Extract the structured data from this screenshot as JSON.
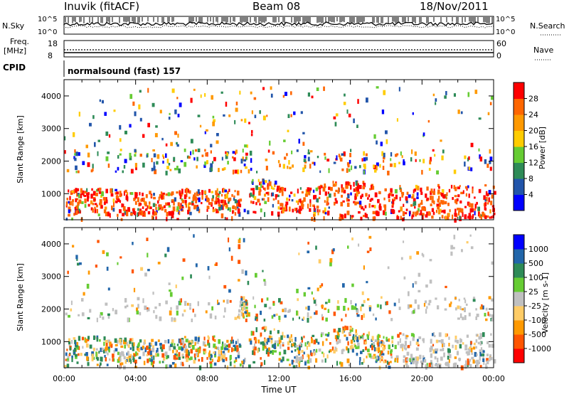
{
  "header": {
    "station": "Inuvik (fitACF)",
    "beam": "Beam 08",
    "date": "18/Nov/2011"
  },
  "panels": {
    "nsky_label": "N.Sky",
    "nsky_ticks": [
      "10^5",
      "10^0"
    ],
    "nsearch_label": "N.Search",
    "nsearch_ticks": [
      "10^5",
      "10^0"
    ],
    "freq_label_1": "Freq.",
    "freq_label_2": "[MHz]",
    "freq_ticks": [
      "18",
      "8"
    ],
    "nave_label": "Nave",
    "nave_ticks": [
      "60",
      "0"
    ],
    "cpid_label": "CPID",
    "cpid_text": "normalsound (fast) 157"
  },
  "colors": {
    "power_scale": [
      "#0000ff",
      "#2255aa",
      "#2e8b57",
      "#66cc33",
      "#ffcc00",
      "#ff9900",
      "#ff6600",
      "#ff0000"
    ],
    "velocity_scale": [
      "#ff0000",
      "#ff5500",
      "#ff9900",
      "#ffcc66",
      "#c0c0c0",
      "#66cc33",
      "#2e8b57",
      "#2266aa",
      "#0000ff"
    ]
  },
  "chart_data": [
    {
      "type": "heatmap",
      "name": "power",
      "xlabel": "Time UT",
      "ylabel": "Slant Range [km]",
      "x_ticks": [
        "00:00",
        "04:00",
        "08:00",
        "12:00",
        "16:00",
        "20:00",
        "00:00"
      ],
      "y_ticks": [
        1000,
        2000,
        3000,
        4000
      ],
      "ylim": [
        200,
        4500
      ],
      "colorbar_label": "Power [dB]",
      "colorbar_ticks": [
        "4",
        "8",
        "12",
        "16",
        "20",
        "24",
        "28"
      ]
    },
    {
      "type": "heatmap",
      "name": "velocity",
      "xlabel": "Time UT",
      "ylabel": "Slant Range [km]",
      "x_ticks": [
        "00:00",
        "04:00",
        "08:00",
        "12:00",
        "16:00",
        "20:00",
        "00:00"
      ],
      "y_ticks": [
        1000,
        2000,
        3000,
        4000
      ],
      "ylim": [
        200,
        4500
      ],
      "colorbar_label": "Velocity [m s-1]",
      "colorbar_ticks": [
        "1000",
        "500",
        "100",
        "25",
        "-25",
        "-100",
        "-500",
        "-1000"
      ]
    }
  ]
}
